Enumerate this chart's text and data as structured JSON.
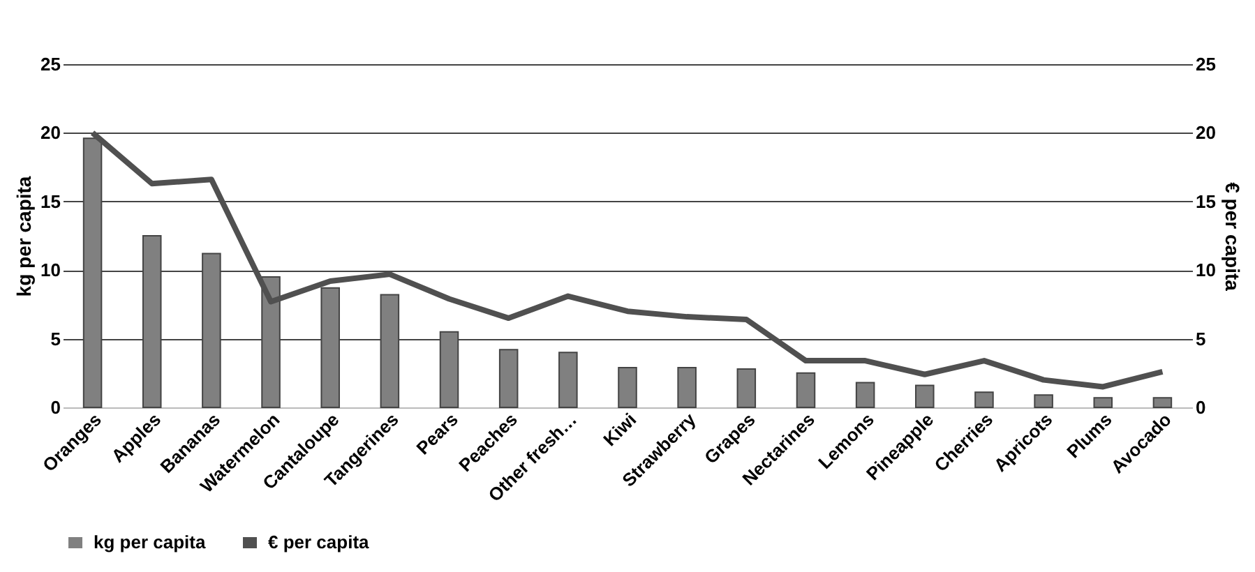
{
  "chart_data": {
    "type": "bar",
    "categories": [
      "Oranges",
      "Apples",
      "Bananas",
      "Watermelon",
      "Cantaloupe",
      "Tangerines",
      "Pears",
      "Peaches",
      "Other fresh…",
      "Kiwi",
      "Strawberry",
      "Grapes",
      "Nectarines",
      "Lemons",
      "Pineapple",
      "Cherries",
      "Apricots",
      "Plums",
      "Avocado"
    ],
    "series": [
      {
        "name": "kg per capita",
        "color": "#808080",
        "values": [
          19.6,
          12.5,
          11.2,
          9.5,
          8.7,
          8.2,
          5.5,
          4.2,
          4.0,
          2.9,
          2.9,
          2.8,
          2.5,
          1.8,
          1.6,
          1.1,
          0.9,
          0.7,
          0.7
        ]
      },
      {
        "name": "€ per capita",
        "type": "line",
        "axis": "y2",
        "color": "#505050",
        "values": [
          20.0,
          16.3,
          16.6,
          7.7,
          9.2,
          9.7,
          7.9,
          6.5,
          8.1,
          7.0,
          6.6,
          6.4,
          3.4,
          3.4,
          2.4,
          3.4,
          2.0,
          1.5,
          2.6
        ]
      }
    ],
    "ylabel": "kg per capita",
    "y2label": "€ per capita",
    "ylim": [
      0,
      25
    ],
    "yticks": [
      0,
      5,
      10,
      15,
      20,
      25
    ],
    "y2lim": [
      0,
      25
    ],
    "y2ticks": [
      0,
      5,
      10,
      15,
      20,
      25
    ],
    "grid": "y",
    "legend": "bottom",
    "marker": "none",
    "line_style": "solid"
  }
}
